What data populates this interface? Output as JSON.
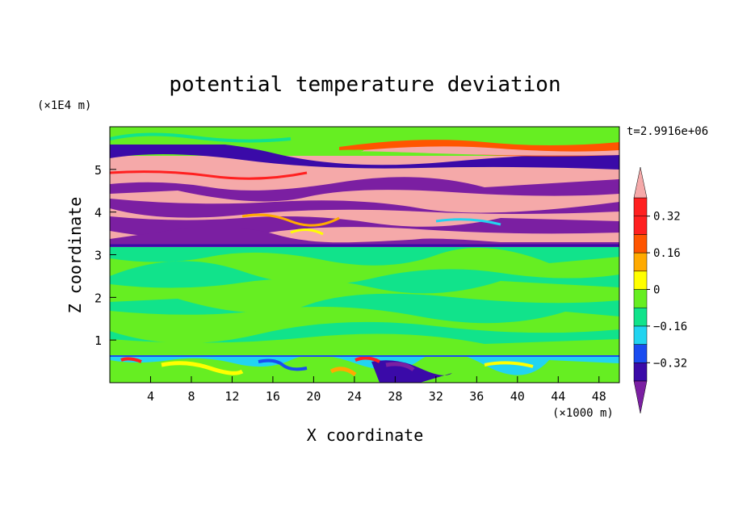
{
  "chart_data": {
    "type": "heatmap",
    "title": "potential temperature deviation",
    "xlabel": "X coordinate",
    "ylabel": "Z coordinate",
    "x_unit": "(×1000 m)",
    "y_unit": "(×1E4 m)",
    "time_label": "t=2.9916e+06",
    "xlim": [
      0,
      50
    ],
    "ylim": [
      0,
      6
    ],
    "x_ticks": [
      4,
      8,
      12,
      16,
      20,
      24,
      28,
      32,
      36,
      40,
      44,
      48
    ],
    "y_ticks": [
      1,
      2,
      3,
      4,
      5
    ],
    "colorbar": {
      "levels": [
        -0.4,
        -0.32,
        -0.24,
        -0.16,
        -0.08,
        0,
        0.08,
        0.16,
        0.24,
        0.32,
        0.4
      ],
      "tick_labels": [
        "0.32",
        "0.16",
        "0",
        "−0.16",
        "−0.32"
      ],
      "tick_values": [
        0.32,
        0.16,
        0,
        -0.16,
        -0.32
      ],
      "colors": [
        "#7b1fa2",
        "#3a0aa8",
        "#1a4cf0",
        "#22d4f0",
        "#11e38b",
        "#66ee22",
        "#ffff00",
        "#ffaa00",
        "#ff5500",
        "#ff2020",
        "#f5a9a9"
      ],
      "extend": "both"
    },
    "bands": [
      {
        "z_range": [
          0,
          0.6
        ],
        "value_range": [
          -0.4,
          0.4
        ],
        "description_value": "mixed"
      },
      {
        "z_range": [
          0.6,
          3.2
        ],
        "value_range": [
          -0.08,
          0.08
        ]
      },
      {
        "z_range": [
          3.2,
          5.6
        ],
        "value_range": [
          -0.4,
          0.4
        ]
      },
      {
        "z_range": [
          5.6,
          6.0
        ],
        "value_range": [
          -0.08,
          0.08
        ]
      }
    ]
  }
}
